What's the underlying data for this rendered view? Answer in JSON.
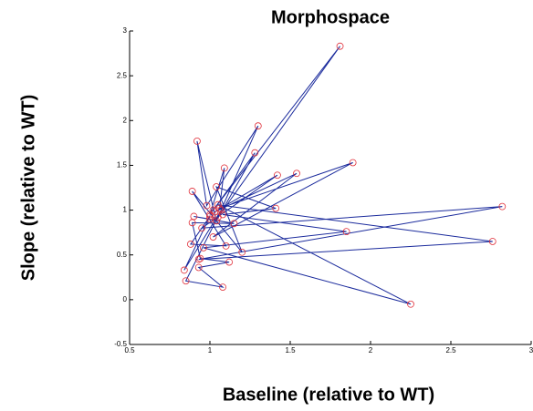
{
  "chart_data": {
    "type": "line",
    "title": "Morphospace",
    "x_label": "Baseline (relative to WT)",
    "y_label": "Slope (relative to WT)",
    "x": [
      1.02,
      1.81,
      1.05,
      1.3,
      0.98,
      0.92,
      1.04,
      1.28,
      1.0,
      1.09,
      1.06,
      1.89,
      1.02,
      1.54,
      1.03,
      1.42,
      0.95,
      2.82,
      0.93,
      2.76,
      1.05,
      2.25,
      0.96,
      1.85,
      1.08,
      1.41,
      1.04,
      1.2,
      0.89,
      1.1,
      0.88,
      1.0,
      0.84,
      1.07,
      0.85,
      1.08,
      0.93,
      1.12,
      0.94,
      0.89,
      1.15,
      0.9,
      1.0
    ],
    "series": [
      {
        "color": "#1a2a9c",
        "marker_color": "#e0303a",
        "values": [
          1.0,
          2.83,
          0.92,
          1.94,
          1.05,
          1.77,
          0.88,
          1.64,
          0.95,
          1.47,
          1.02,
          1.53,
          0.7,
          1.41,
          0.98,
          1.39,
          0.8,
          1.04,
          0.45,
          0.65,
          1.06,
          -0.05,
          0.58,
          0.76,
          0.95,
          1.02,
          1.26,
          0.53,
          1.21,
          0.6,
          0.62,
          0.93,
          0.33,
          1.0,
          0.21,
          0.14,
          0.36,
          0.42,
          0.46,
          0.86,
          0.85,
          0.93,
          0.9
        ]
      }
    ],
    "xlim": [
      0.5,
      3
    ],
    "ylim": [
      -0.5,
      3
    ],
    "xticks": [
      0.5,
      1,
      1.5,
      2,
      2.5,
      3
    ],
    "yticks": [
      -0.5,
      0,
      0.5,
      1,
      1.5,
      2,
      2.5,
      3
    ],
    "grid": false
  }
}
